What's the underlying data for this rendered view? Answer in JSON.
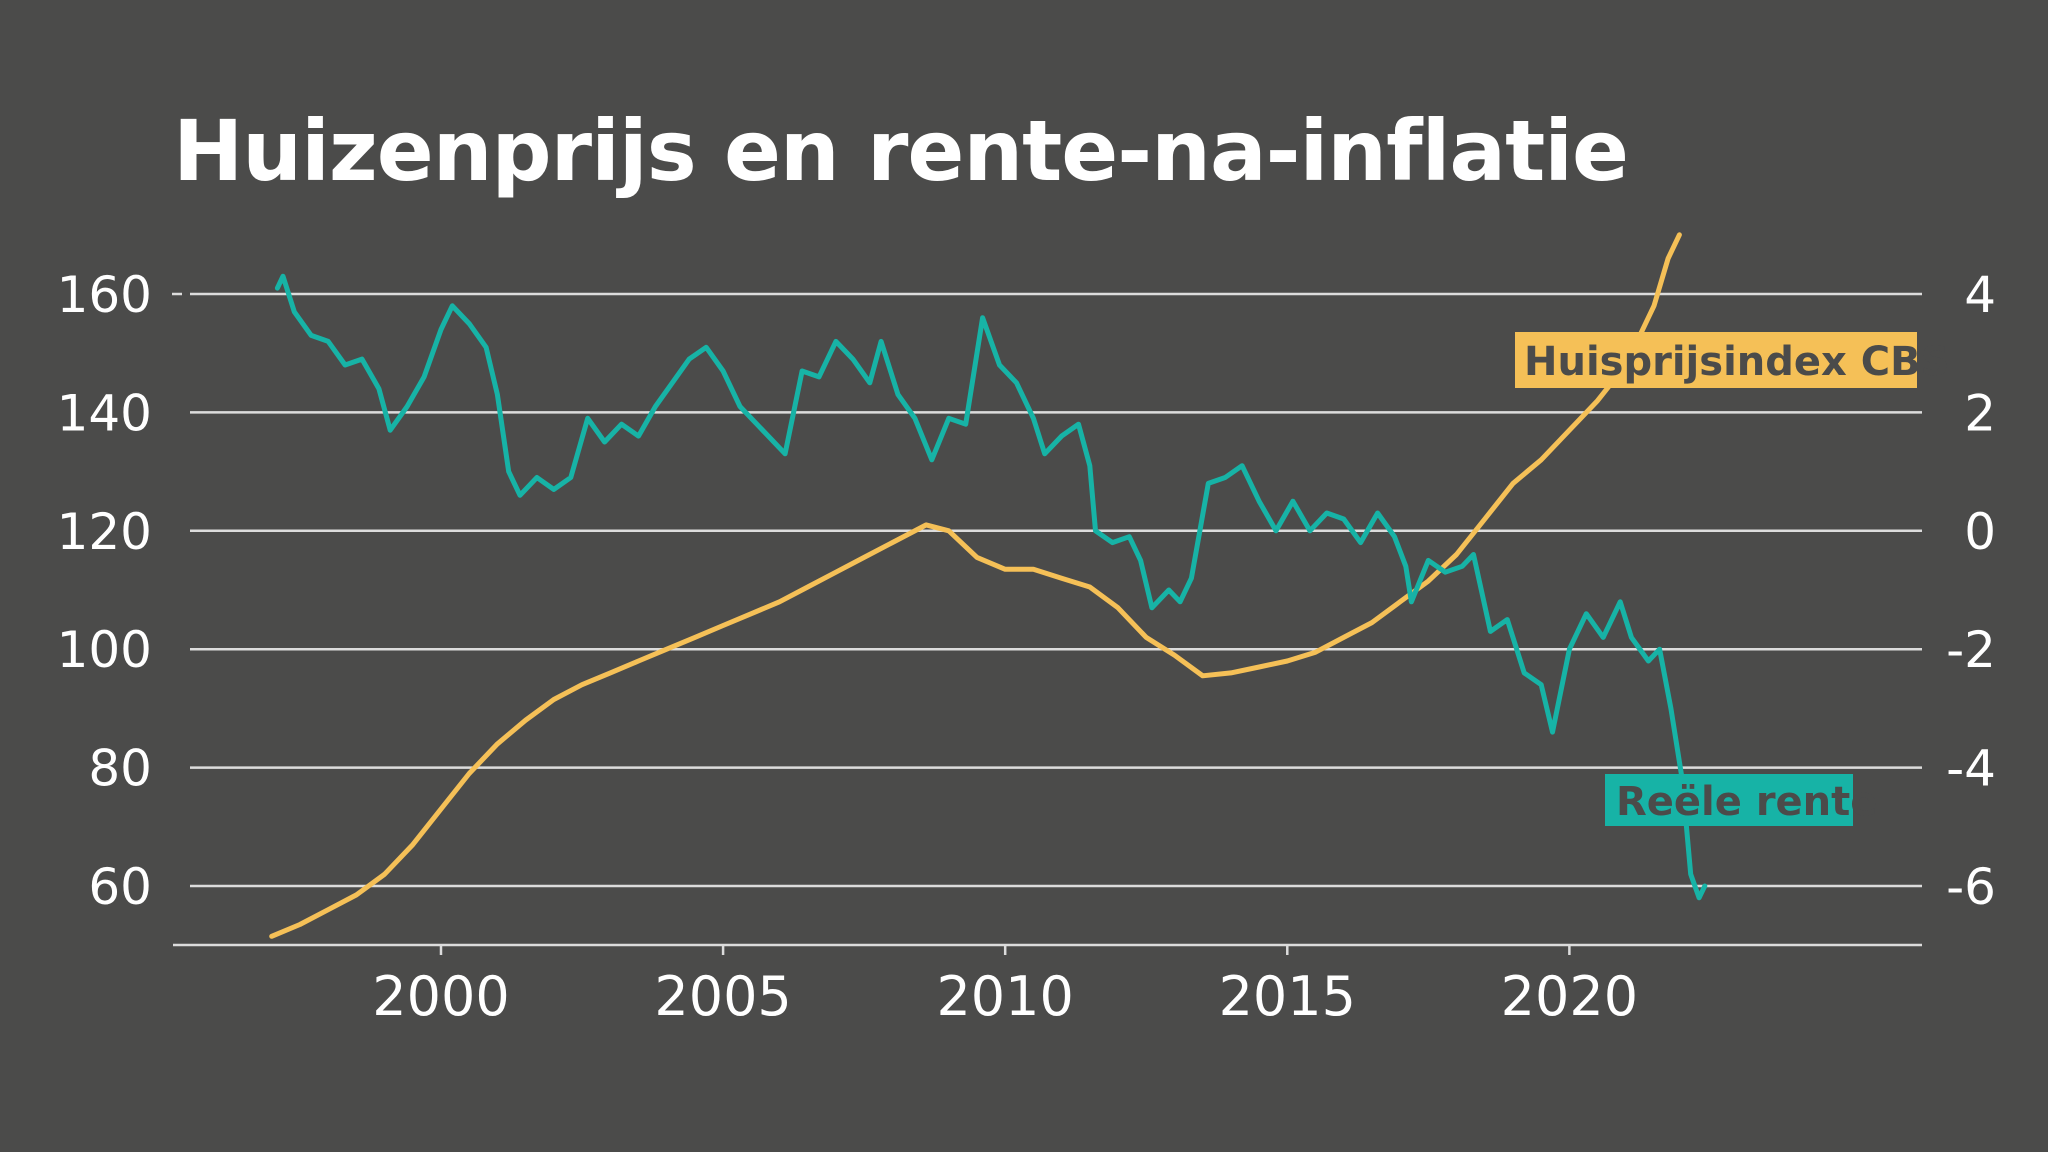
{
  "chart_data": {
    "type": "line",
    "title": "Huizenprijs en rente-na-inflatie",
    "x_ticks": [
      "2000",
      "2005",
      "2010",
      "2015",
      "2020"
    ],
    "left_axis": {
      "ticks": [
        "160",
        "140",
        "120",
        "100",
        "80",
        "60"
      ],
      "range": [
        50,
        170
      ]
    },
    "right_axis": {
      "ticks": [
        "4",
        "2",
        "0",
        "-2",
        "-4",
        "-6"
      ],
      "range": [
        -7,
        4.7
      ]
    },
    "x_range": [
      1995.25,
      2026.25
    ],
    "grid": true,
    "colors": {
      "background": "#4b4b4a",
      "grid": "#dcdcdc",
      "huisprijs": "#f5c057",
      "rente": "#17b3a6"
    },
    "series": [
      {
        "name": "Huisprijsindex CBS",
        "axis": "left",
        "points": [
          [
            1997.0,
            51.5
          ],
          [
            1997.5,
            53.5
          ],
          [
            1998.0,
            56
          ],
          [
            1998.5,
            58.5
          ],
          [
            1999.0,
            62
          ],
          [
            1999.5,
            67
          ],
          [
            2000.0,
            73
          ],
          [
            2000.5,
            79
          ],
          [
            2001.0,
            84
          ],
          [
            2001.5,
            88
          ],
          [
            2002.0,
            91.5
          ],
          [
            2002.5,
            94
          ],
          [
            2003.0,
            96
          ],
          [
            2003.5,
            98
          ],
          [
            2004.0,
            100
          ],
          [
            2004.5,
            102
          ],
          [
            2005.0,
            104
          ],
          [
            2005.5,
            106
          ],
          [
            2006.0,
            108
          ],
          [
            2006.5,
            110.5
          ],
          [
            2007.0,
            113
          ],
          [
            2007.5,
            115.5
          ],
          [
            2008.0,
            118
          ],
          [
            2008.6,
            121
          ],
          [
            2009.0,
            120
          ],
          [
            2009.5,
            115.5
          ],
          [
            2010.0,
            113.5
          ],
          [
            2010.5,
            113.5
          ],
          [
            2011.0,
            112
          ],
          [
            2011.5,
            110.5
          ],
          [
            2012.0,
            107
          ],
          [
            2012.5,
            102
          ],
          [
            2013.0,
            99
          ],
          [
            2013.5,
            95.5
          ],
          [
            2014.0,
            96
          ],
          [
            2014.5,
            97
          ],
          [
            2015.0,
            98
          ],
          [
            2015.5,
            99.5
          ],
          [
            2016.0,
            102
          ],
          [
            2016.5,
            104.5
          ],
          [
            2017.0,
            108
          ],
          [
            2017.5,
            111.5
          ],
          [
            2018.0,
            116
          ],
          [
            2018.5,
            122
          ],
          [
            2019.0,
            128
          ],
          [
            2019.5,
            132
          ],
          [
            2020.0,
            137
          ],
          [
            2020.5,
            142
          ],
          [
            2021.0,
            148
          ],
          [
            2021.5,
            158
          ],
          [
            2021.75,
            166
          ],
          [
            2021.95,
            170
          ]
        ]
      },
      {
        "name": "Reële rente",
        "axis": "right",
        "points": [
          [
            1997.1,
            4.1
          ],
          [
            1997.2,
            4.3
          ],
          [
            1997.4,
            3.7
          ],
          [
            1997.7,
            3.3
          ],
          [
            1998.0,
            3.2
          ],
          [
            1998.3,
            2.8
          ],
          [
            1998.6,
            2.9
          ],
          [
            1998.9,
            2.4
          ],
          [
            1999.1,
            1.7
          ],
          [
            1999.4,
            2.1
          ],
          [
            1999.7,
            2.6
          ],
          [
            2000.0,
            3.4
          ],
          [
            2000.2,
            3.8
          ],
          [
            2000.5,
            3.5
          ],
          [
            2000.8,
            3.1
          ],
          [
            2001.0,
            2.3
          ],
          [
            2001.2,
            1.0
          ],
          [
            2001.4,
            0.6
          ],
          [
            2001.7,
            0.9
          ],
          [
            2002.0,
            0.7
          ],
          [
            2002.3,
            0.9
          ],
          [
            2002.6,
            1.9
          ],
          [
            2002.9,
            1.5
          ],
          [
            2003.2,
            1.8
          ],
          [
            2003.5,
            1.6
          ],
          [
            2003.8,
            2.1
          ],
          [
            2004.1,
            2.5
          ],
          [
            2004.4,
            2.9
          ],
          [
            2004.7,
            3.1
          ],
          [
            2005.0,
            2.7
          ],
          [
            2005.3,
            2.1
          ],
          [
            2005.6,
            1.8
          ],
          [
            2005.9,
            1.5
          ],
          [
            2006.1,
            1.3
          ],
          [
            2006.4,
            2.7
          ],
          [
            2006.7,
            2.6
          ],
          [
            2007.0,
            3.2
          ],
          [
            2007.3,
            2.9
          ],
          [
            2007.6,
            2.5
          ],
          [
            2007.8,
            3.2
          ],
          [
            2008.1,
            2.3
          ],
          [
            2008.4,
            1.9
          ],
          [
            2008.7,
            1.2
          ],
          [
            2009.0,
            1.9
          ],
          [
            2009.3,
            1.8
          ],
          [
            2009.6,
            3.6
          ],
          [
            2009.9,
            2.8
          ],
          [
            2010.2,
            2.5
          ],
          [
            2010.5,
            1.9
          ],
          [
            2010.7,
            1.3
          ],
          [
            2011.0,
            1.6
          ],
          [
            2011.3,
            1.8
          ],
          [
            2011.5,
            1.1
          ],
          [
            2011.6,
            0.0
          ],
          [
            2011.9,
            -0.2
          ],
          [
            2012.2,
            -0.1
          ],
          [
            2012.4,
            -0.5
          ],
          [
            2012.6,
            -1.3
          ],
          [
            2012.9,
            -1.0
          ],
          [
            2013.1,
            -1.2
          ],
          [
            2013.3,
            -0.8
          ],
          [
            2013.6,
            0.8
          ],
          [
            2013.9,
            0.9
          ],
          [
            2014.2,
            1.1
          ],
          [
            2014.5,
            0.5
          ],
          [
            2014.8,
            0.0
          ],
          [
            2015.1,
            0.5
          ],
          [
            2015.4,
            0.0
          ],
          [
            2015.7,
            0.3
          ],
          [
            2016.0,
            0.2
          ],
          [
            2016.3,
            -0.2
          ],
          [
            2016.6,
            0.3
          ],
          [
            2016.9,
            -0.1
          ],
          [
            2017.1,
            -0.6
          ],
          [
            2017.2,
            -1.2
          ],
          [
            2017.5,
            -0.5
          ],
          [
            2017.8,
            -0.7
          ],
          [
            2018.1,
            -0.6
          ],
          [
            2018.3,
            -0.4
          ],
          [
            2018.6,
            -1.7
          ],
          [
            2018.9,
            -1.5
          ],
          [
            2019.2,
            -2.4
          ],
          [
            2019.5,
            -2.6
          ],
          [
            2019.7,
            -3.4
          ],
          [
            2020.0,
            -2.0
          ],
          [
            2020.3,
            -1.4
          ],
          [
            2020.6,
            -1.8
          ],
          [
            2020.9,
            -1.2
          ],
          [
            2021.1,
            -1.8
          ],
          [
            2021.4,
            -2.2
          ],
          [
            2021.6,
            -2.0
          ],
          [
            2021.8,
            -3.0
          ],
          [
            2022.0,
            -4.2
          ],
          [
            2022.15,
            -5.8
          ],
          [
            2022.3,
            -6.2
          ],
          [
            2022.4,
            -6.0
          ]
        ]
      }
    ]
  }
}
